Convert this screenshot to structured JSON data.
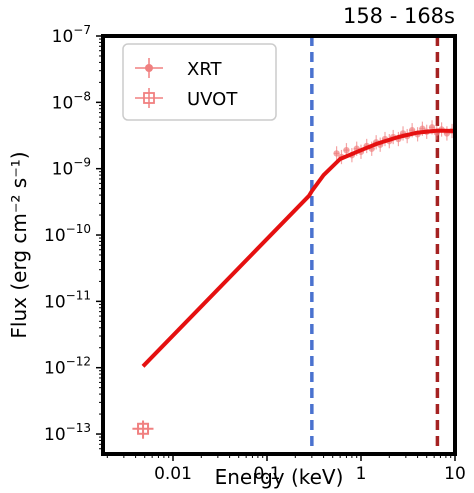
{
  "chart_data": {
    "type": "scatter",
    "title": "158 - 168s",
    "xlabel": "Energy (keV)",
    "ylabel": "Flux (erg cm⁻² s⁻¹)",
    "x_scale": "log",
    "y_scale": "log",
    "xlim": [
      0.0018,
      10
    ],
    "ylim": [
      5e-14,
      1e-07
    ],
    "x_ticks": [
      {
        "value": 0.01,
        "label": "0.01"
      },
      {
        "value": 0.1,
        "label": "0.1"
      },
      {
        "value": 1,
        "label": "1"
      },
      {
        "value": 10,
        "label": "10"
      }
    ],
    "y_ticks": [
      {
        "value": 1e-13,
        "base": "10",
        "exp": "−13"
      },
      {
        "value": 1e-12,
        "base": "10",
        "exp": "−12"
      },
      {
        "value": 1e-11,
        "base": "10",
        "exp": "−11"
      },
      {
        "value": 1e-10,
        "base": "10",
        "exp": "−10"
      },
      {
        "value": 1e-09,
        "base": "10",
        "exp": "−9"
      },
      {
        "value": 1e-08,
        "base": "10",
        "exp": "−8"
      },
      {
        "value": 1e-07,
        "base": "10",
        "exp": "−7"
      }
    ],
    "legend_position": "top-left",
    "series": [
      {
        "name": "XRT",
        "color": "#f08080",
        "marker": "circle",
        "points": [
          {
            "x": 0.55,
            "y": 1.7e-09
          },
          {
            "x": 0.62,
            "y": 1.5e-09
          },
          {
            "x": 0.7,
            "y": 1.9e-09
          },
          {
            "x": 0.8,
            "y": 1.6e-09
          },
          {
            "x": 0.9,
            "y": 2e-09
          },
          {
            "x": 1.0,
            "y": 1.8e-09
          },
          {
            "x": 1.15,
            "y": 2.2e-09
          },
          {
            "x": 1.3,
            "y": 2e-09
          },
          {
            "x": 1.45,
            "y": 2.5e-09
          },
          {
            "x": 1.6,
            "y": 2.3e-09
          },
          {
            "x": 1.8,
            "y": 2.8e-09
          },
          {
            "x": 2.0,
            "y": 2.6e-09
          },
          {
            "x": 2.2,
            "y": 3e-09
          },
          {
            "x": 2.5,
            "y": 2.8e-09
          },
          {
            "x": 2.8,
            "y": 3.4e-09
          },
          {
            "x": 3.1,
            "y": 3.1e-09
          },
          {
            "x": 3.5,
            "y": 3.8e-09
          },
          {
            "x": 4.0,
            "y": 3.3e-09
          },
          {
            "x": 4.5,
            "y": 4e-09
          },
          {
            "x": 5.0,
            "y": 3.6e-09
          },
          {
            "x": 5.7,
            "y": 4.2e-09
          },
          {
            "x": 6.4,
            "y": 3.5e-09
          },
          {
            "x": 7.2,
            "y": 3.9e-09
          },
          {
            "x": 8.2,
            "y": 3.4e-09
          },
          {
            "x": 9.3,
            "y": 3.7e-09
          }
        ]
      },
      {
        "name": "UVOT",
        "color": "#f08080",
        "marker": "square",
        "points": [
          {
            "x": 0.0048,
            "y": 1.2e-13,
            "xerr_low": 0.0037,
            "xerr_high": 0.0062,
            "yerr_low": 8.5e-14,
            "yerr_high": 1.6e-13
          }
        ]
      }
    ],
    "model_line": {
      "color": "#e51010",
      "points": [
        {
          "x": 0.0048,
          "y": 1.05e-12
        },
        {
          "x": 0.28,
          "y": 3.9e-10
        },
        {
          "x": 0.3,
          "y": 4.6e-10
        },
        {
          "x": 0.4,
          "y": 8e-10
        },
        {
          "x": 0.6,
          "y": 1.4e-09
        },
        {
          "x": 1.0,
          "y": 1.9e-09
        },
        {
          "x": 1.5,
          "y": 2.4e-09
        },
        {
          "x": 2.5,
          "y": 3e-09
        },
        {
          "x": 4.0,
          "y": 3.5e-09
        },
        {
          "x": 6.5,
          "y": 3.75e-09
        },
        {
          "x": 10,
          "y": 3.7e-09
        }
      ]
    },
    "vlines": [
      {
        "x": 0.3,
        "color": "#4a72cf",
        "style": "dashed"
      },
      {
        "x": 6.5,
        "color": "#a52222",
        "style": "dashed"
      }
    ]
  }
}
